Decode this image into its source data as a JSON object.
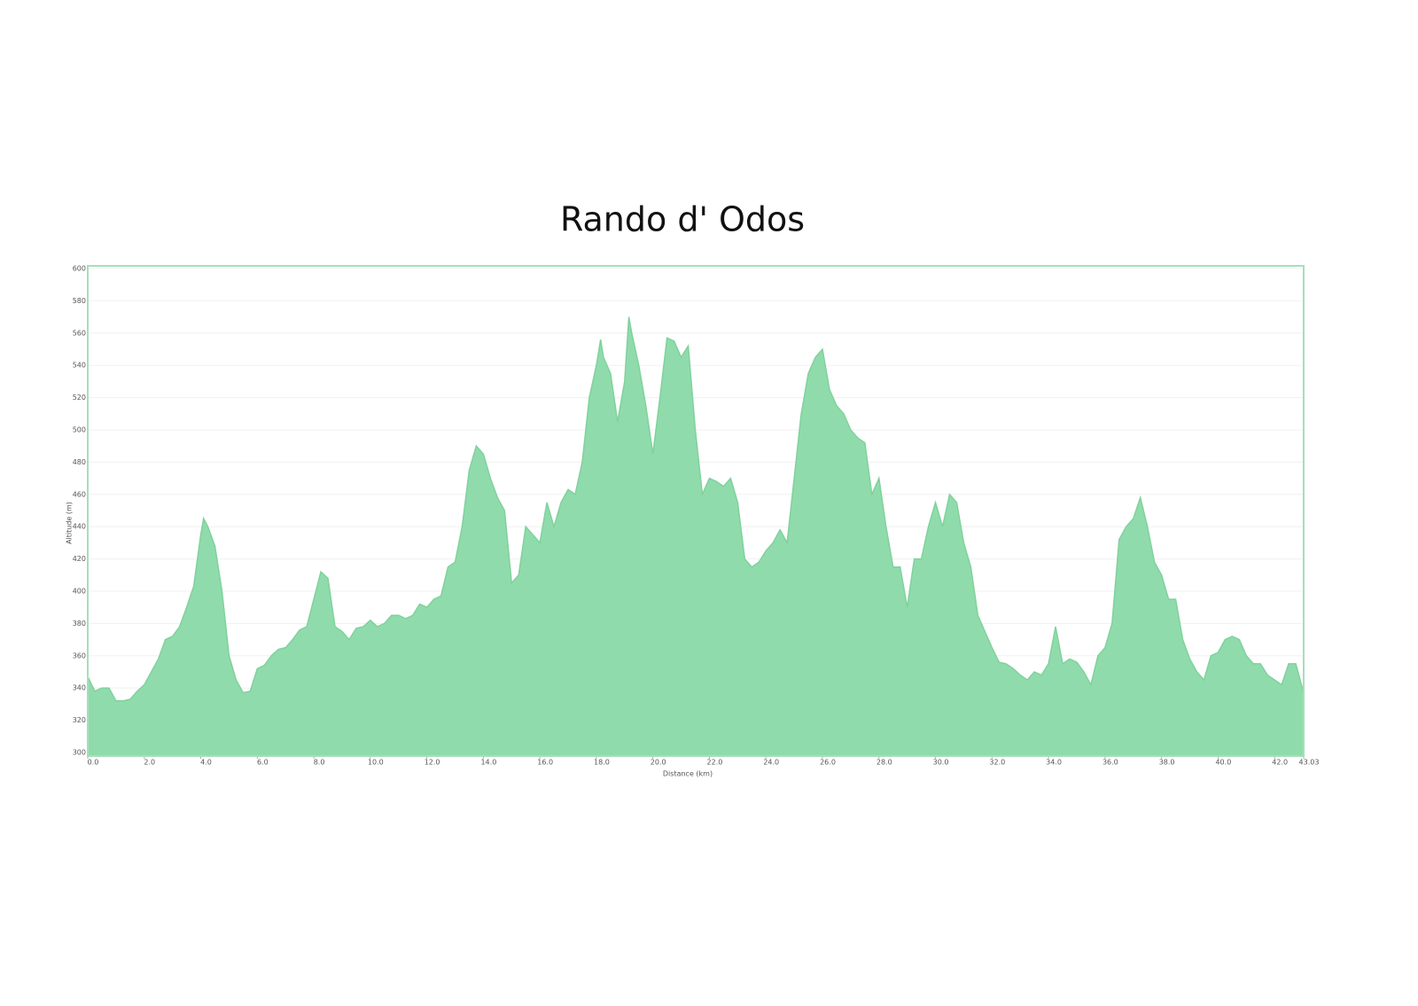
{
  "chart_data": {
    "type": "area",
    "title": "Rando d' Odos",
    "x_label": "Distance (km)",
    "y_label": "Altitude (m)",
    "color": "#90dbab",
    "x": [
      0,
      0.25,
      0.5,
      0.75,
      1,
      1.25,
      1.5,
      1.75,
      2,
      2.25,
      2.5,
      2.75,
      3,
      3.25,
      3.5,
      3.75,
      4,
      4.1,
      4.25,
      4.5,
      4.75,
      5,
      5.25,
      5.5,
      5.75,
      6,
      6.25,
      6.5,
      6.75,
      7,
      7.25,
      7.5,
      7.75,
      8,
      8.25,
      8.5,
      8.75,
      9,
      9.25,
      9.5,
      9.75,
      10,
      10.25,
      10.5,
      10.75,
      11,
      11.25,
      11.5,
      11.75,
      12,
      12.25,
      12.5,
      12.75,
      13,
      13.25,
      13.5,
      13.75,
      14,
      14.25,
      14.5,
      14.75,
      15,
      15.25,
      15.5,
      15.75,
      16,
      16.25,
      16.5,
      16.75,
      17,
      17.25,
      17.5,
      17.75,
      18,
      18.15,
      18.25,
      18.5,
      18.75,
      19,
      19.15,
      19.25,
      19.5,
      19.75,
      20,
      20.25,
      20.5,
      20.75,
      21,
      21.25,
      21.5,
      21.75,
      22,
      22.25,
      22.5,
      22.75,
      23,
      23.25,
      23.5,
      23.75,
      24,
      24.25,
      24.5,
      24.75,
      25,
      25.25,
      25.5,
      25.75,
      26,
      26.25,
      26.5,
      26.75,
      27,
      27.25,
      27.5,
      27.75,
      28,
      28.25,
      28.5,
      28.75,
      29,
      29.25,
      29.5,
      29.75,
      30,
      30.25,
      30.5,
      30.75,
      31,
      31.25,
      31.5,
      31.75,
      32,
      32.25,
      32.5,
      32.75,
      33,
      33.25,
      33.5,
      33.75,
      34,
      34.25,
      34.5,
      34.75,
      35,
      35.25,
      35.5,
      35.75,
      36,
      36.25,
      36.5,
      36.75,
      37,
      37.25,
      37.5,
      37.75,
      38,
      38.25,
      38.5,
      38.75,
      39,
      39.25,
      39.5,
      39.75,
      40,
      40.25,
      40.5,
      40.75,
      41,
      41.25,
      41.5,
      41.75,
      42,
      42.25,
      42.5,
      42.75,
      43.03
    ],
    "values": [
      347,
      338,
      340,
      340,
      332,
      332,
      333,
      338,
      342,
      350,
      358,
      370,
      372,
      378,
      390,
      403,
      435,
      445,
      440,
      428,
      400,
      360,
      345,
      337,
      338,
      352,
      354,
      360,
      364,
      365,
      370,
      376,
      378,
      395,
      412,
      408,
      378,
      375,
      370,
      377,
      378,
      382,
      378,
      380,
      385,
      385,
      383,
      385,
      392,
      390,
      395,
      397,
      415,
      418,
      440,
      475,
      490,
      485,
      470,
      458,
      450,
      405,
      410,
      440,
      435,
      430,
      455,
      440,
      455,
      463,
      460,
      480,
      520,
      540,
      556,
      545,
      535,
      505,
      530,
      570,
      560,
      540,
      515,
      485,
      520,
      557,
      555,
      545,
      552,
      500,
      460,
      470,
      468,
      465,
      470,
      455,
      420,
      415,
      418,
      425,
      430,
      438,
      430,
      470,
      510,
      535,
      545,
      550,
      525,
      515,
      510,
      500,
      495,
      492,
      460,
      470,
      440,
      415,
      415,
      390,
      420,
      420,
      440,
      455,
      440,
      460,
      455,
      430,
      415,
      385,
      375,
      365,
      356,
      355,
      352,
      348,
      345,
      350,
      348,
      355,
      378,
      355,
      358,
      356,
      350,
      342,
      360,
      365,
      380,
      432,
      440,
      445,
      458,
      440,
      418,
      410,
      395,
      395,
      370,
      358,
      350,
      345,
      360,
      362,
      370,
      372,
      370,
      360,
      355,
      355,
      348,
      345,
      342,
      355,
      355,
      337
    ],
    "xlim": [
      0,
      43.03
    ],
    "ylim": [
      300,
      600
    ],
    "xticks": [
      {
        "value": 0,
        "label": "0.0"
      },
      {
        "value": 2,
        "label": "2.0"
      },
      {
        "value": 4,
        "label": "4.0"
      },
      {
        "value": 6,
        "label": "6.0"
      },
      {
        "value": 8,
        "label": "8.0"
      },
      {
        "value": 10,
        "label": "10.0"
      },
      {
        "value": 12,
        "label": "12.0"
      },
      {
        "value": 14,
        "label": "14.0"
      },
      {
        "value": 16,
        "label": "16.0"
      },
      {
        "value": 18,
        "label": "18.0"
      },
      {
        "value": 20,
        "label": "20.0"
      },
      {
        "value": 22,
        "label": "22.0"
      },
      {
        "value": 24,
        "label": "24.0"
      },
      {
        "value": 26,
        "label": "26.0"
      },
      {
        "value": 28,
        "label": "28.0"
      },
      {
        "value": 30,
        "label": "30.0"
      },
      {
        "value": 32,
        "label": "32.0"
      },
      {
        "value": 34,
        "label": "34.0"
      },
      {
        "value": 36,
        "label": "36.0"
      },
      {
        "value": 38,
        "label": "38.0"
      },
      {
        "value": 40,
        "label": "40.0"
      },
      {
        "value": 42,
        "label": "42.0"
      },
      {
        "value": 43.03,
        "label": "43.03"
      }
    ],
    "yticks": [
      300,
      320,
      340,
      360,
      380,
      400,
      420,
      440,
      460,
      480,
      500,
      520,
      540,
      560,
      580,
      600
    ],
    "grid": true
  }
}
